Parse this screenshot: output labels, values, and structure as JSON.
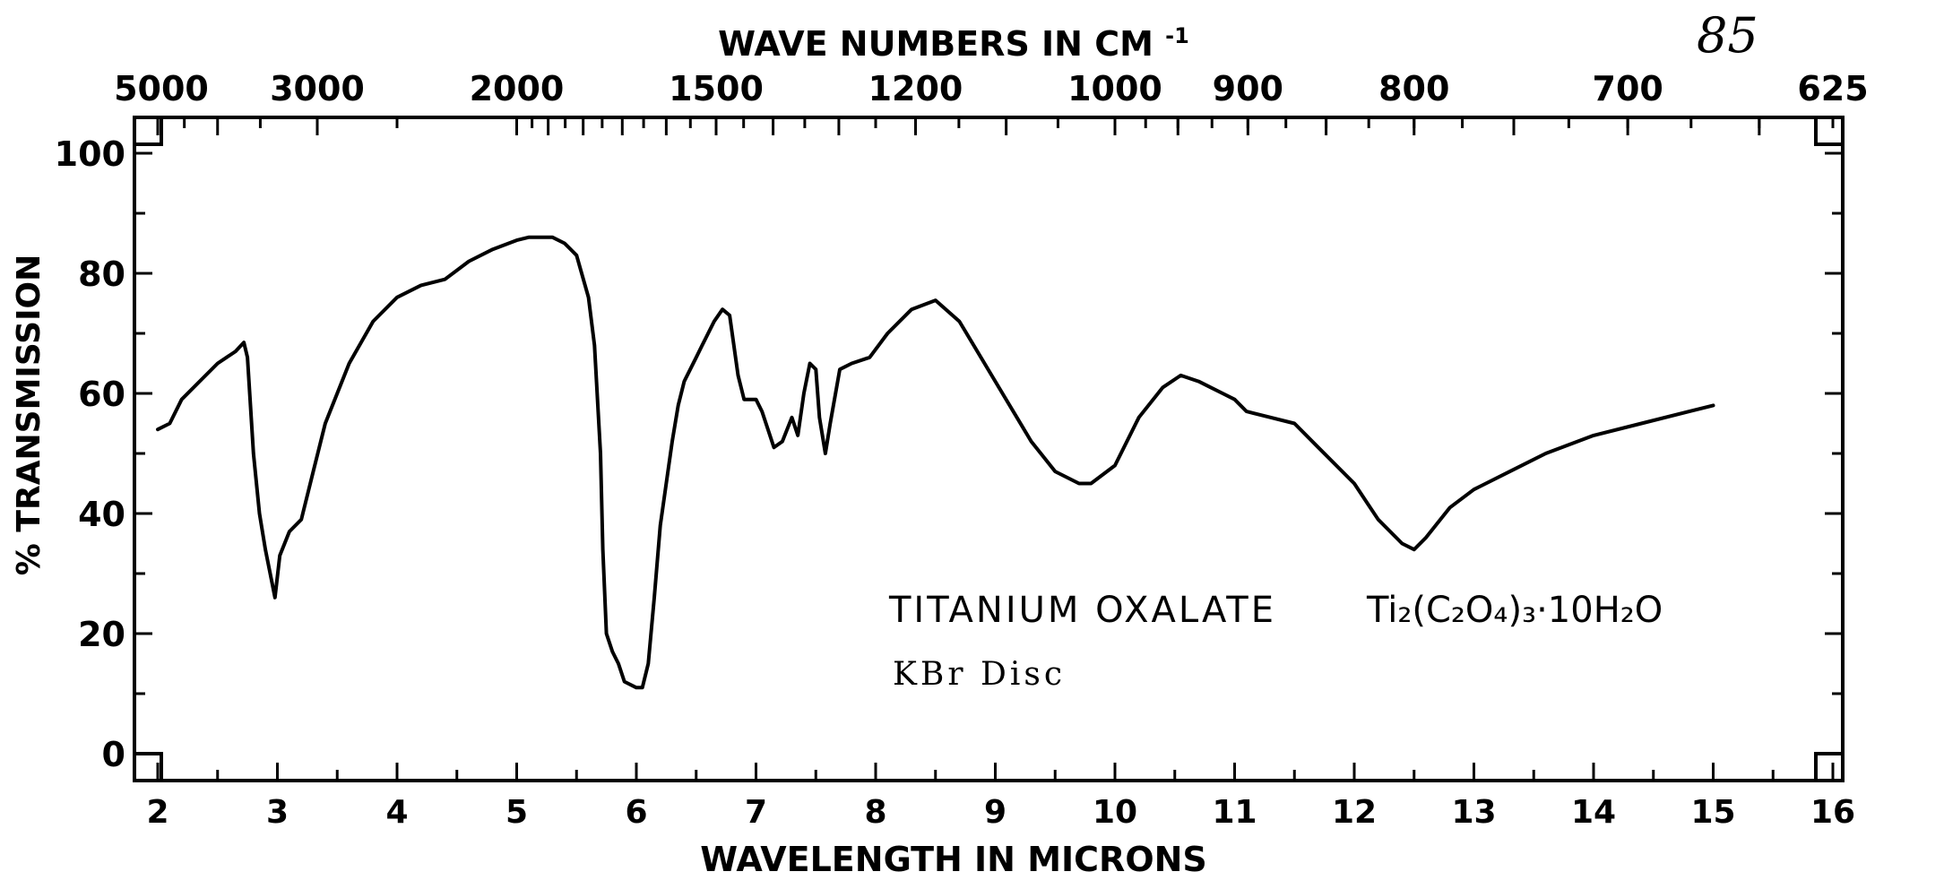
{
  "page_number": "85",
  "chart_data": {
    "type": "line",
    "title": "",
    "xlabel": "WAVELENGTH IN MICRONS",
    "ylabel": "% TRANSMISSION",
    "top_axis_label": "WAVE NUMBERS IN CM",
    "top_axis_label_superscript": "-1",
    "annotation_compound": "TITANIUM OXALATE",
    "annotation_formula": "Ti₂(C₂O₄)₃·10H₂O",
    "annotation_sample": "KBr Disc",
    "xlim": [
      2,
      16
    ],
    "ylim": [
      0,
      100
    ],
    "x_ticks": [
      "2",
      "3",
      "4",
      "5",
      "6",
      "7",
      "8",
      "9",
      "10",
      "11",
      "12",
      "13",
      "14",
      "15",
      "16"
    ],
    "y_ticks": [
      "0",
      "20",
      "40",
      "60",
      "80",
      "100"
    ],
    "wavenumber_ticks": [
      {
        "label": "5000",
        "micron": 2.0
      },
      {
        "label": "3000",
        "micron": 3.333
      },
      {
        "label": "2000",
        "micron": 5.0
      },
      {
        "label": "1500",
        "micron": 6.667
      },
      {
        "label": "1200",
        "micron": 8.333
      },
      {
        "label": "1000",
        "micron": 10.0
      },
      {
        "label": "900",
        "micron": 11.111
      },
      {
        "label": "800",
        "micron": 12.5
      },
      {
        "label": "700",
        "micron": 14.286
      },
      {
        "label": "625",
        "micron": 16.0
      }
    ],
    "grid": false,
    "series": [
      {
        "x": [
          2.0,
          2.1,
          2.2,
          2.35,
          2.5,
          2.65,
          2.72,
          2.75,
          2.8,
          2.85,
          2.9,
          2.95,
          2.98,
          3.02,
          3.1,
          3.2,
          3.3,
          3.4,
          3.6,
          3.8,
          4.0,
          4.2,
          4.4,
          4.6,
          4.8,
          5.0,
          5.1,
          5.3,
          5.4,
          5.5,
          5.6,
          5.65,
          5.7,
          5.72,
          5.75,
          5.8,
          5.85,
          5.9,
          6.0,
          6.05,
          6.1,
          6.15,
          6.2,
          6.3,
          6.35,
          6.4,
          6.5,
          6.55,
          6.65,
          6.72,
          6.78,
          6.85,
          6.9,
          7.0,
          7.05,
          7.15,
          7.22,
          7.3,
          7.35,
          7.4,
          7.45,
          7.5,
          7.53,
          7.58,
          7.62,
          7.7,
          7.8,
          7.95,
          8.1,
          8.3,
          8.5,
          8.7,
          9.0,
          9.3,
          9.5,
          9.7,
          9.8,
          10.0,
          10.2,
          10.4,
          10.55,
          10.7,
          10.8,
          10.9,
          11.0,
          11.1,
          11.3,
          11.5,
          11.7,
          12.0,
          12.2,
          12.4,
          12.5,
          12.6,
          12.8,
          13.0,
          13.3,
          13.6,
          14.0,
          14.4,
          14.8,
          15.0
        ],
        "values": [
          54,
          55,
          59,
          62,
          65,
          67,
          68.5,
          66,
          50,
          40,
          34,
          29,
          26,
          33,
          37,
          39,
          47,
          55,
          65,
          72,
          76,
          78,
          79,
          82,
          84,
          85.5,
          86,
          86,
          85,
          83,
          76,
          68,
          50,
          34,
          20,
          17,
          15,
          12,
          11,
          11,
          15,
          26,
          38,
          52,
          58,
          62,
          66,
          68,
          72,
          74,
          73,
          63,
          59,
          59,
          57,
          51,
          52,
          56,
          53,
          60,
          65,
          64,
          56,
          50,
          55,
          64,
          65,
          66,
          70,
          74,
          75.5,
          72,
          62,
          52,
          47,
          45,
          45,
          48,
          56,
          61,
          63,
          62,
          61,
          60,
          59,
          57,
          56,
          55,
          51,
          45,
          39,
          35,
          34,
          36,
          41,
          44,
          47,
          50,
          53,
          55,
          57,
          58
        ]
      }
    ]
  }
}
